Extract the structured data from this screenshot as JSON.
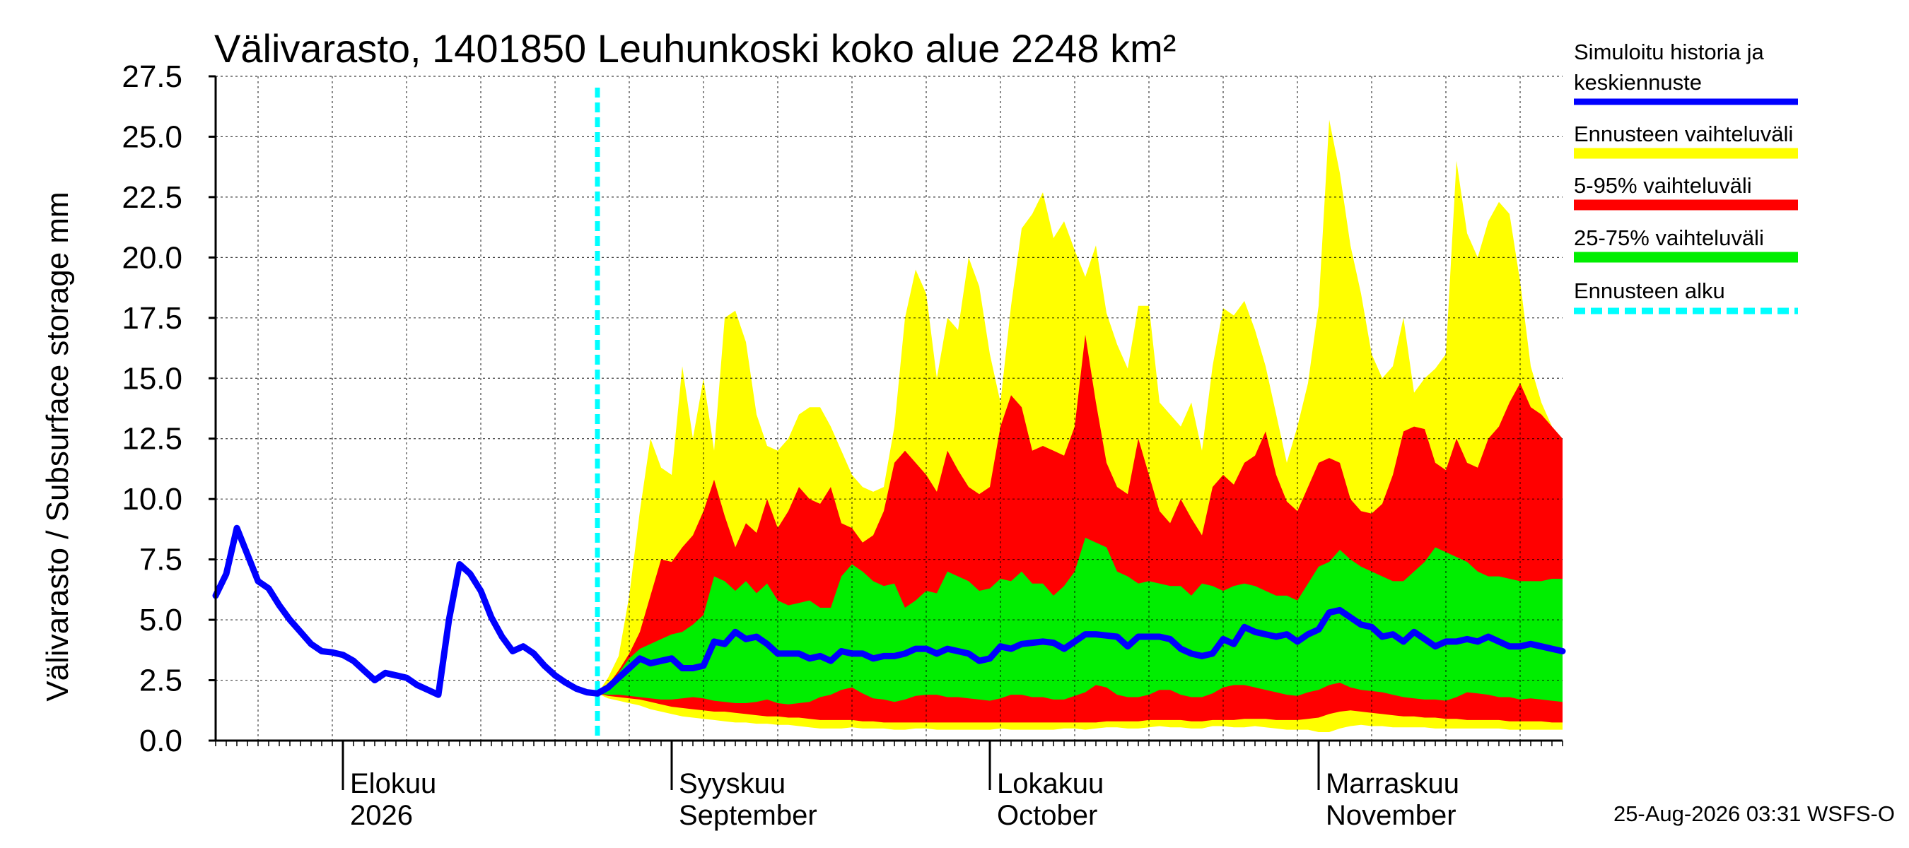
{
  "chart_data": {
    "type": "area",
    "title": "Välivarasto, 1401850 Leuhunkoski koko alue 2248 km²",
    "ylabel": "Välivarasto / Subsurface storage  mm",
    "ylim": [
      0,
      27.5
    ],
    "yticks": [
      "0.0",
      "2.5",
      "5.0",
      "7.5",
      "10.0",
      "12.5",
      "15.0",
      "17.5",
      "20.0",
      "22.5",
      "25.0",
      "27.5"
    ],
    "x_start": "2026-07-20",
    "x_end": "2026-11-24",
    "forecast_start": "2026-08-25",
    "grid": true,
    "month_labels": [
      {
        "line1": "Elokuu",
        "line2": "2026",
        "date": "2026-08-01"
      },
      {
        "line1": "Syyskuu",
        "line2": "September",
        "date": "2026-09-01"
      },
      {
        "line1": "Lokakuu",
        "line2": "October",
        "date": "2026-10-01"
      },
      {
        "line1": "Marraskuu",
        "line2": "November",
        "date": "2026-11-01"
      }
    ],
    "legend": [
      {
        "line1": "Simuloitu historia ja",
        "line2": "keskiennuste",
        "color": "#0000ff",
        "style": "solid"
      },
      {
        "line1": "Ennusteen vaihteluväli",
        "line2": "",
        "color": "#ffff00",
        "style": "solid"
      },
      {
        "line1": "5-95% vaihteluväli",
        "line2": "",
        "color": "#ff0000",
        "style": "solid"
      },
      {
        "line1": "25-75% vaihteluväli",
        "line2": "",
        "color": "#00ee00",
        "style": "solid"
      },
      {
        "line1": "Ennusteen alku",
        "line2": "",
        "color": "#00ffff",
        "style": "dashed"
      }
    ],
    "colors": {
      "history": "#0000ff",
      "range": "#ffff00",
      "p5_95": "#ff0000",
      "p25_75": "#00ee00",
      "forecast_start": "#00ffff"
    },
    "history": [
      [
        "2026-07-20",
        6.0
      ],
      [
        "2026-07-21",
        6.9
      ],
      [
        "2026-07-22",
        8.8
      ],
      [
        "2026-07-23",
        7.7
      ],
      [
        "2026-07-24",
        6.6
      ],
      [
        "2026-07-25",
        6.3
      ],
      [
        "2026-07-26",
        5.6
      ],
      [
        "2026-07-27",
        5.0
      ],
      [
        "2026-07-28",
        4.5
      ],
      [
        "2026-07-29",
        4.0
      ],
      [
        "2026-07-30",
        3.7
      ],
      [
        "2026-07-31",
        3.65
      ],
      [
        "2026-08-01",
        3.55
      ],
      [
        "2026-08-02",
        3.3
      ],
      [
        "2026-08-03",
        2.9
      ],
      [
        "2026-08-04",
        2.5
      ],
      [
        "2026-08-05",
        2.8
      ],
      [
        "2026-08-06",
        2.7
      ],
      [
        "2026-08-07",
        2.6
      ],
      [
        "2026-08-08",
        2.3
      ],
      [
        "2026-08-09",
        2.1
      ],
      [
        "2026-08-10",
        1.9
      ],
      [
        "2026-08-11",
        5.0
      ],
      [
        "2026-08-12",
        7.3
      ],
      [
        "2026-08-13",
        6.9
      ],
      [
        "2026-08-14",
        6.2
      ],
      [
        "2026-08-15",
        5.1
      ],
      [
        "2026-08-16",
        4.3
      ],
      [
        "2026-08-17",
        3.7
      ],
      [
        "2026-08-18",
        3.9
      ],
      [
        "2026-08-19",
        3.6
      ],
      [
        "2026-08-20",
        3.1
      ],
      [
        "2026-08-21",
        2.7
      ],
      [
        "2026-08-22",
        2.4
      ],
      [
        "2026-08-23",
        2.15
      ],
      [
        "2026-08-24",
        2.0
      ],
      [
        "2026-08-25",
        1.95
      ]
    ],
    "forecast": {
      "dates": [
        "2026-08-25",
        "2026-08-26",
        "2026-08-27",
        "2026-08-28",
        "2026-08-29",
        "2026-08-30",
        "2026-08-31",
        "2026-09-01",
        "2026-09-02",
        "2026-09-03",
        "2026-09-04",
        "2026-09-05",
        "2026-09-06",
        "2026-09-07",
        "2026-09-08",
        "2026-09-09",
        "2026-09-10",
        "2026-09-11",
        "2026-09-12",
        "2026-09-13",
        "2026-09-14",
        "2026-09-15",
        "2026-09-16",
        "2026-09-17",
        "2026-09-18",
        "2026-09-19",
        "2026-09-20",
        "2026-09-21",
        "2026-09-22",
        "2026-09-23",
        "2026-09-24",
        "2026-09-25",
        "2026-09-26",
        "2026-09-27",
        "2026-09-28",
        "2026-09-29",
        "2026-09-30",
        "2026-10-01",
        "2026-10-02",
        "2026-10-03",
        "2026-10-04",
        "2026-10-05",
        "2026-10-06",
        "2026-10-07",
        "2026-10-08",
        "2026-10-09",
        "2026-10-10",
        "2026-10-11",
        "2026-10-12",
        "2026-10-13",
        "2026-10-14",
        "2026-10-15",
        "2026-10-16",
        "2026-10-17",
        "2026-10-18",
        "2026-10-19",
        "2026-10-20",
        "2026-10-21",
        "2026-10-22",
        "2026-10-23",
        "2026-10-24",
        "2026-10-25",
        "2026-10-26",
        "2026-10-27",
        "2026-10-28",
        "2026-10-29",
        "2026-10-30",
        "2026-10-31",
        "2026-11-01",
        "2026-11-02",
        "2026-11-03",
        "2026-11-04",
        "2026-11-05",
        "2026-11-06",
        "2026-11-07",
        "2026-11-08",
        "2026-11-09",
        "2026-11-10",
        "2026-11-11",
        "2026-11-12",
        "2026-11-13",
        "2026-11-14",
        "2026-11-15",
        "2026-11-16",
        "2026-11-17",
        "2026-11-18",
        "2026-11-19",
        "2026-11-20",
        "2026-11-21",
        "2026-11-22",
        "2026-11-23",
        "2026-11-24"
      ],
      "mean": [
        1.95,
        2.2,
        2.6,
        3.0,
        3.4,
        3.2,
        3.3,
        3.4,
        3.0,
        3.0,
        3.1,
        4.1,
        4.0,
        4.5,
        4.2,
        4.3,
        4.0,
        3.6,
        3.6,
        3.6,
        3.4,
        3.5,
        3.3,
        3.7,
        3.6,
        3.6,
        3.4,
        3.5,
        3.5,
        3.6,
        3.8,
        3.8,
        3.6,
        3.8,
        3.7,
        3.6,
        3.3,
        3.4,
        3.9,
        3.8,
        4.0,
        4.05,
        4.1,
        4.05,
        3.8,
        4.1,
        4.4,
        4.4,
        4.35,
        4.3,
        3.9,
        4.3,
        4.3,
        4.3,
        4.2,
        3.8,
        3.6,
        3.5,
        3.6,
        4.2,
        4.0,
        4.7,
        4.5,
        4.4,
        4.3,
        4.4,
        4.1,
        4.4,
        4.6,
        5.3,
        5.4,
        5.1,
        4.8,
        4.7,
        4.3,
        4.4,
        4.1,
        4.5,
        4.2,
        3.9,
        4.1,
        4.1,
        4.2,
        4.1,
        4.3,
        4.1,
        3.9,
        3.9,
        4.0,
        3.9,
        3.8,
        3.7
      ],
      "min": [
        1.95,
        1.75,
        1.65,
        1.55,
        1.45,
        1.3,
        1.2,
        1.1,
        1.0,
        0.95,
        0.9,
        0.85,
        0.8,
        0.75,
        0.75,
        0.7,
        0.7,
        0.65,
        0.65,
        0.6,
        0.55,
        0.5,
        0.5,
        0.5,
        0.55,
        0.5,
        0.5,
        0.5,
        0.45,
        0.45,
        0.5,
        0.5,
        0.45,
        0.45,
        0.45,
        0.45,
        0.45,
        0.45,
        0.5,
        0.45,
        0.45,
        0.45,
        0.45,
        0.45,
        0.5,
        0.5,
        0.45,
        0.5,
        0.55,
        0.55,
        0.5,
        0.5,
        0.55,
        0.6,
        0.55,
        0.55,
        0.5,
        0.5,
        0.6,
        0.6,
        0.55,
        0.55,
        0.6,
        0.55,
        0.5,
        0.45,
        0.45,
        0.45,
        0.35,
        0.35,
        0.5,
        0.6,
        0.65,
        0.6,
        0.6,
        0.55,
        0.55,
        0.55,
        0.55,
        0.5,
        0.5,
        0.5,
        0.5,
        0.5,
        0.5,
        0.5,
        0.45,
        0.45,
        0.45,
        0.45,
        0.45,
        0.45
      ],
      "max": [
        1.95,
        2.6,
        3.5,
        6.0,
        9.5,
        12.5,
        11.3,
        11.0,
        15.5,
        12.5,
        15.0,
        12.0,
        17.5,
        17.8,
        16.5,
        13.5,
        12.2,
        12.0,
        12.5,
        13.5,
        13.8,
        13.8,
        13.0,
        12.0,
        11.0,
        10.5,
        10.3,
        10.5,
        13.0,
        17.5,
        19.5,
        18.5,
        15.0,
        17.5,
        17.0,
        20.0,
        18.8,
        16.0,
        14.0,
        18.0,
        21.2,
        21.8,
        22.7,
        20.8,
        21.5,
        20.3,
        19.2,
        20.5,
        17.7,
        16.4,
        15.4,
        18.0,
        18.0,
        14.0,
        13.5,
        13.0,
        14.0,
        12.0,
        15.5,
        17.9,
        17.6,
        18.2,
        17.0,
        15.5,
        13.5,
        11.5,
        13.0,
        14.8,
        18.0,
        25.7,
        23.5,
        20.5,
        18.5,
        16.0,
        15.0,
        15.5,
        17.5,
        14.4,
        15.0,
        15.4,
        16.0,
        24.0,
        21.0,
        20.0,
        21.5,
        22.3,
        21.8,
        19.0,
        15.5,
        14.0,
        13.0,
        12.5
      ],
      "p5": [
        1.95,
        1.85,
        1.8,
        1.75,
        1.7,
        1.6,
        1.5,
        1.4,
        1.35,
        1.3,
        1.25,
        1.2,
        1.2,
        1.15,
        1.1,
        1.05,
        1.0,
        1.0,
        0.95,
        0.95,
        0.9,
        0.85,
        0.85,
        0.85,
        0.85,
        0.8,
        0.8,
        0.75,
        0.75,
        0.75,
        0.75,
        0.75,
        0.75,
        0.75,
        0.75,
        0.75,
        0.75,
        0.75,
        0.75,
        0.75,
        0.75,
        0.75,
        0.75,
        0.75,
        0.75,
        0.75,
        0.75,
        0.75,
        0.8,
        0.8,
        0.8,
        0.8,
        0.85,
        0.85,
        0.85,
        0.85,
        0.8,
        0.8,
        0.85,
        0.85,
        0.85,
        0.9,
        0.9,
        0.9,
        0.85,
        0.85,
        0.85,
        0.9,
        0.95,
        1.1,
        1.2,
        1.25,
        1.2,
        1.15,
        1.1,
        1.05,
        1.0,
        1.0,
        0.95,
        0.95,
        0.9,
        0.9,
        0.85,
        0.85,
        0.85,
        0.85,
        0.8,
        0.8,
        0.8,
        0.8,
        0.75,
        0.75
      ],
      "p95": [
        1.95,
        2.3,
        2.9,
        3.6,
        4.5,
        6.0,
        7.5,
        7.4,
        8.0,
        8.5,
        9.5,
        10.8,
        9.3,
        8.0,
        9.0,
        8.6,
        10.0,
        8.8,
        9.5,
        10.5,
        10.0,
        9.8,
        10.5,
        9.0,
        8.8,
        8.2,
        8.5,
        9.5,
        11.5,
        12.0,
        11.5,
        11.0,
        10.3,
        12.0,
        11.2,
        10.5,
        10.2,
        10.5,
        13.0,
        14.3,
        13.8,
        12.0,
        12.2,
        12.0,
        11.8,
        13.0,
        16.8,
        14.0,
        11.5,
        10.5,
        10.2,
        12.5,
        11.0,
        9.5,
        9.0,
        10.0,
        9.2,
        8.5,
        10.5,
        11.0,
        10.6,
        11.5,
        11.8,
        12.8,
        11.0,
        9.9,
        9.5,
        10.5,
        11.5,
        11.7,
        11.5,
        10.0,
        9.5,
        9.4,
        9.8,
        11.0,
        12.8,
        13.0,
        12.9,
        11.5,
        11.2,
        12.5,
        11.5,
        11.3,
        12.5,
        13.0,
        14.0,
        14.8,
        13.8,
        13.5,
        13.0,
        12.5
      ],
      "p25": [
        1.95,
        1.9,
        1.9,
        1.85,
        1.8,
        1.75,
        1.7,
        1.7,
        1.75,
        1.8,
        1.75,
        1.65,
        1.6,
        1.55,
        1.55,
        1.6,
        1.7,
        1.55,
        1.5,
        1.55,
        1.6,
        1.8,
        1.9,
        2.1,
        2.2,
        1.95,
        1.75,
        1.7,
        1.6,
        1.7,
        1.85,
        1.9,
        1.9,
        1.8,
        1.8,
        1.75,
        1.7,
        1.65,
        1.75,
        1.9,
        1.9,
        1.8,
        1.8,
        1.7,
        1.7,
        1.85,
        2.0,
        2.3,
        2.2,
        1.9,
        1.8,
        1.8,
        1.9,
        2.1,
        2.1,
        1.9,
        1.8,
        1.8,
        1.95,
        2.2,
        2.3,
        2.3,
        2.2,
        2.1,
        2.0,
        1.9,
        1.85,
        2.0,
        2.1,
        2.3,
        2.4,
        2.2,
        2.1,
        2.05,
        2.0,
        1.9,
        1.8,
        1.75,
        1.7,
        1.7,
        1.65,
        1.8,
        2.0,
        1.95,
        1.9,
        1.8,
        1.8,
        1.7,
        1.75,
        1.7,
        1.65,
        1.6
      ],
      "p75": [
        1.95,
        2.3,
        2.8,
        3.4,
        3.8,
        4.0,
        4.2,
        4.4,
        4.5,
        4.8,
        5.2,
        6.8,
        6.6,
        6.2,
        6.6,
        6.1,
        6.5,
        5.8,
        5.6,
        5.7,
        5.8,
        5.5,
        5.5,
        6.8,
        7.3,
        7.0,
        6.6,
        6.4,
        6.5,
        5.5,
        5.8,
        6.2,
        6.1,
        7.0,
        6.8,
        6.6,
        6.2,
        6.3,
        6.7,
        6.6,
        7.0,
        6.5,
        6.5,
        6.0,
        6.4,
        7.0,
        8.4,
        8.2,
        8.0,
        7.0,
        6.8,
        6.5,
        6.6,
        6.5,
        6.4,
        6.4,
        6.0,
        6.5,
        6.4,
        6.2,
        6.4,
        6.5,
        6.4,
        6.2,
        6.0,
        6.0,
        5.8,
        6.5,
        7.2,
        7.4,
        7.9,
        7.5,
        7.2,
        7.0,
        6.8,
        6.6,
        6.6,
        7.0,
        7.4,
        8.0,
        7.8,
        7.6,
        7.4,
        7.0,
        6.8,
        6.8,
        6.7,
        6.6,
        6.6,
        6.6,
        6.7,
        6.7
      ]
    }
  },
  "footer": {
    "timestamp": "25-Aug-2026 03:31 WSFS-O"
  }
}
